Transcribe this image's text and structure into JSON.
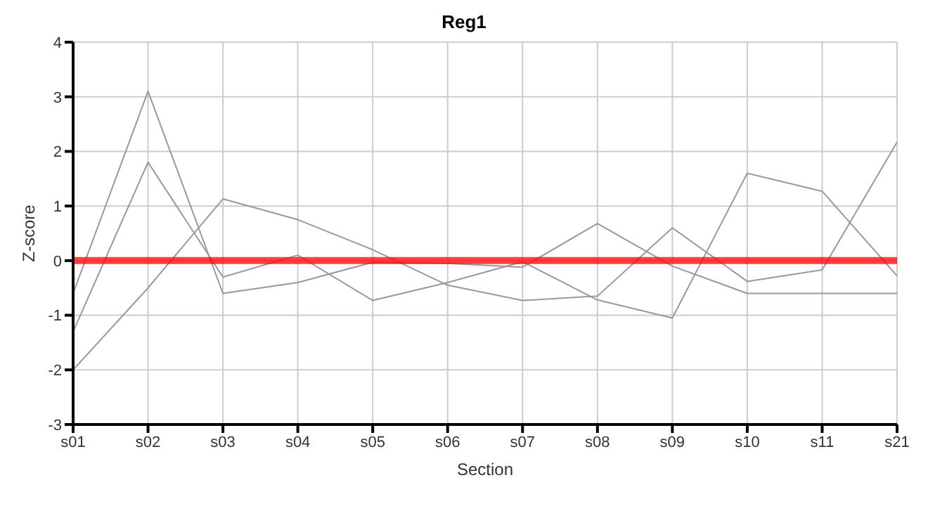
{
  "chart_data": {
    "type": "line",
    "title": "Reg1",
    "xlabel": "Section",
    "ylabel": "Z-score",
    "categories": [
      "s01",
      "s02",
      "s03",
      "s04",
      "s05",
      "s06",
      "s07",
      "s08",
      "s09",
      "s10",
      "s11",
      "s21"
    ],
    "series": [
      {
        "color": "#999999",
        "values": [
          -0.6,
          3.1,
          -0.6,
          -0.4,
          -0.03,
          -0.05,
          -0.12,
          0.68,
          -0.1,
          -0.6,
          -0.6,
          -0.6
        ]
      },
      {
        "color": "#999999",
        "values": [
          -1.3,
          1.8,
          -0.3,
          0.1,
          -0.73,
          -0.4,
          -0.02,
          -0.72,
          -1.05,
          1.6,
          1.27,
          -0.28
        ]
      },
      {
        "color": "#999999",
        "values": [
          -2,
          -0.5,
          1.13,
          0.75,
          0.2,
          -0.45,
          -0.73,
          -0.65,
          0.6,
          -0.38,
          -0.17,
          2.17
        ]
      }
    ],
    "ylim": [
      -3,
      4
    ],
    "yticks": [
      -3,
      -2,
      -1,
      0,
      1,
      2,
      3,
      4
    ],
    "grid": true,
    "legend": false,
    "marker": "none",
    "line_style": "solid",
    "ref_lines": [
      {
        "axis": "y",
        "value": 0,
        "color": "#ff0000"
      }
    ]
  }
}
